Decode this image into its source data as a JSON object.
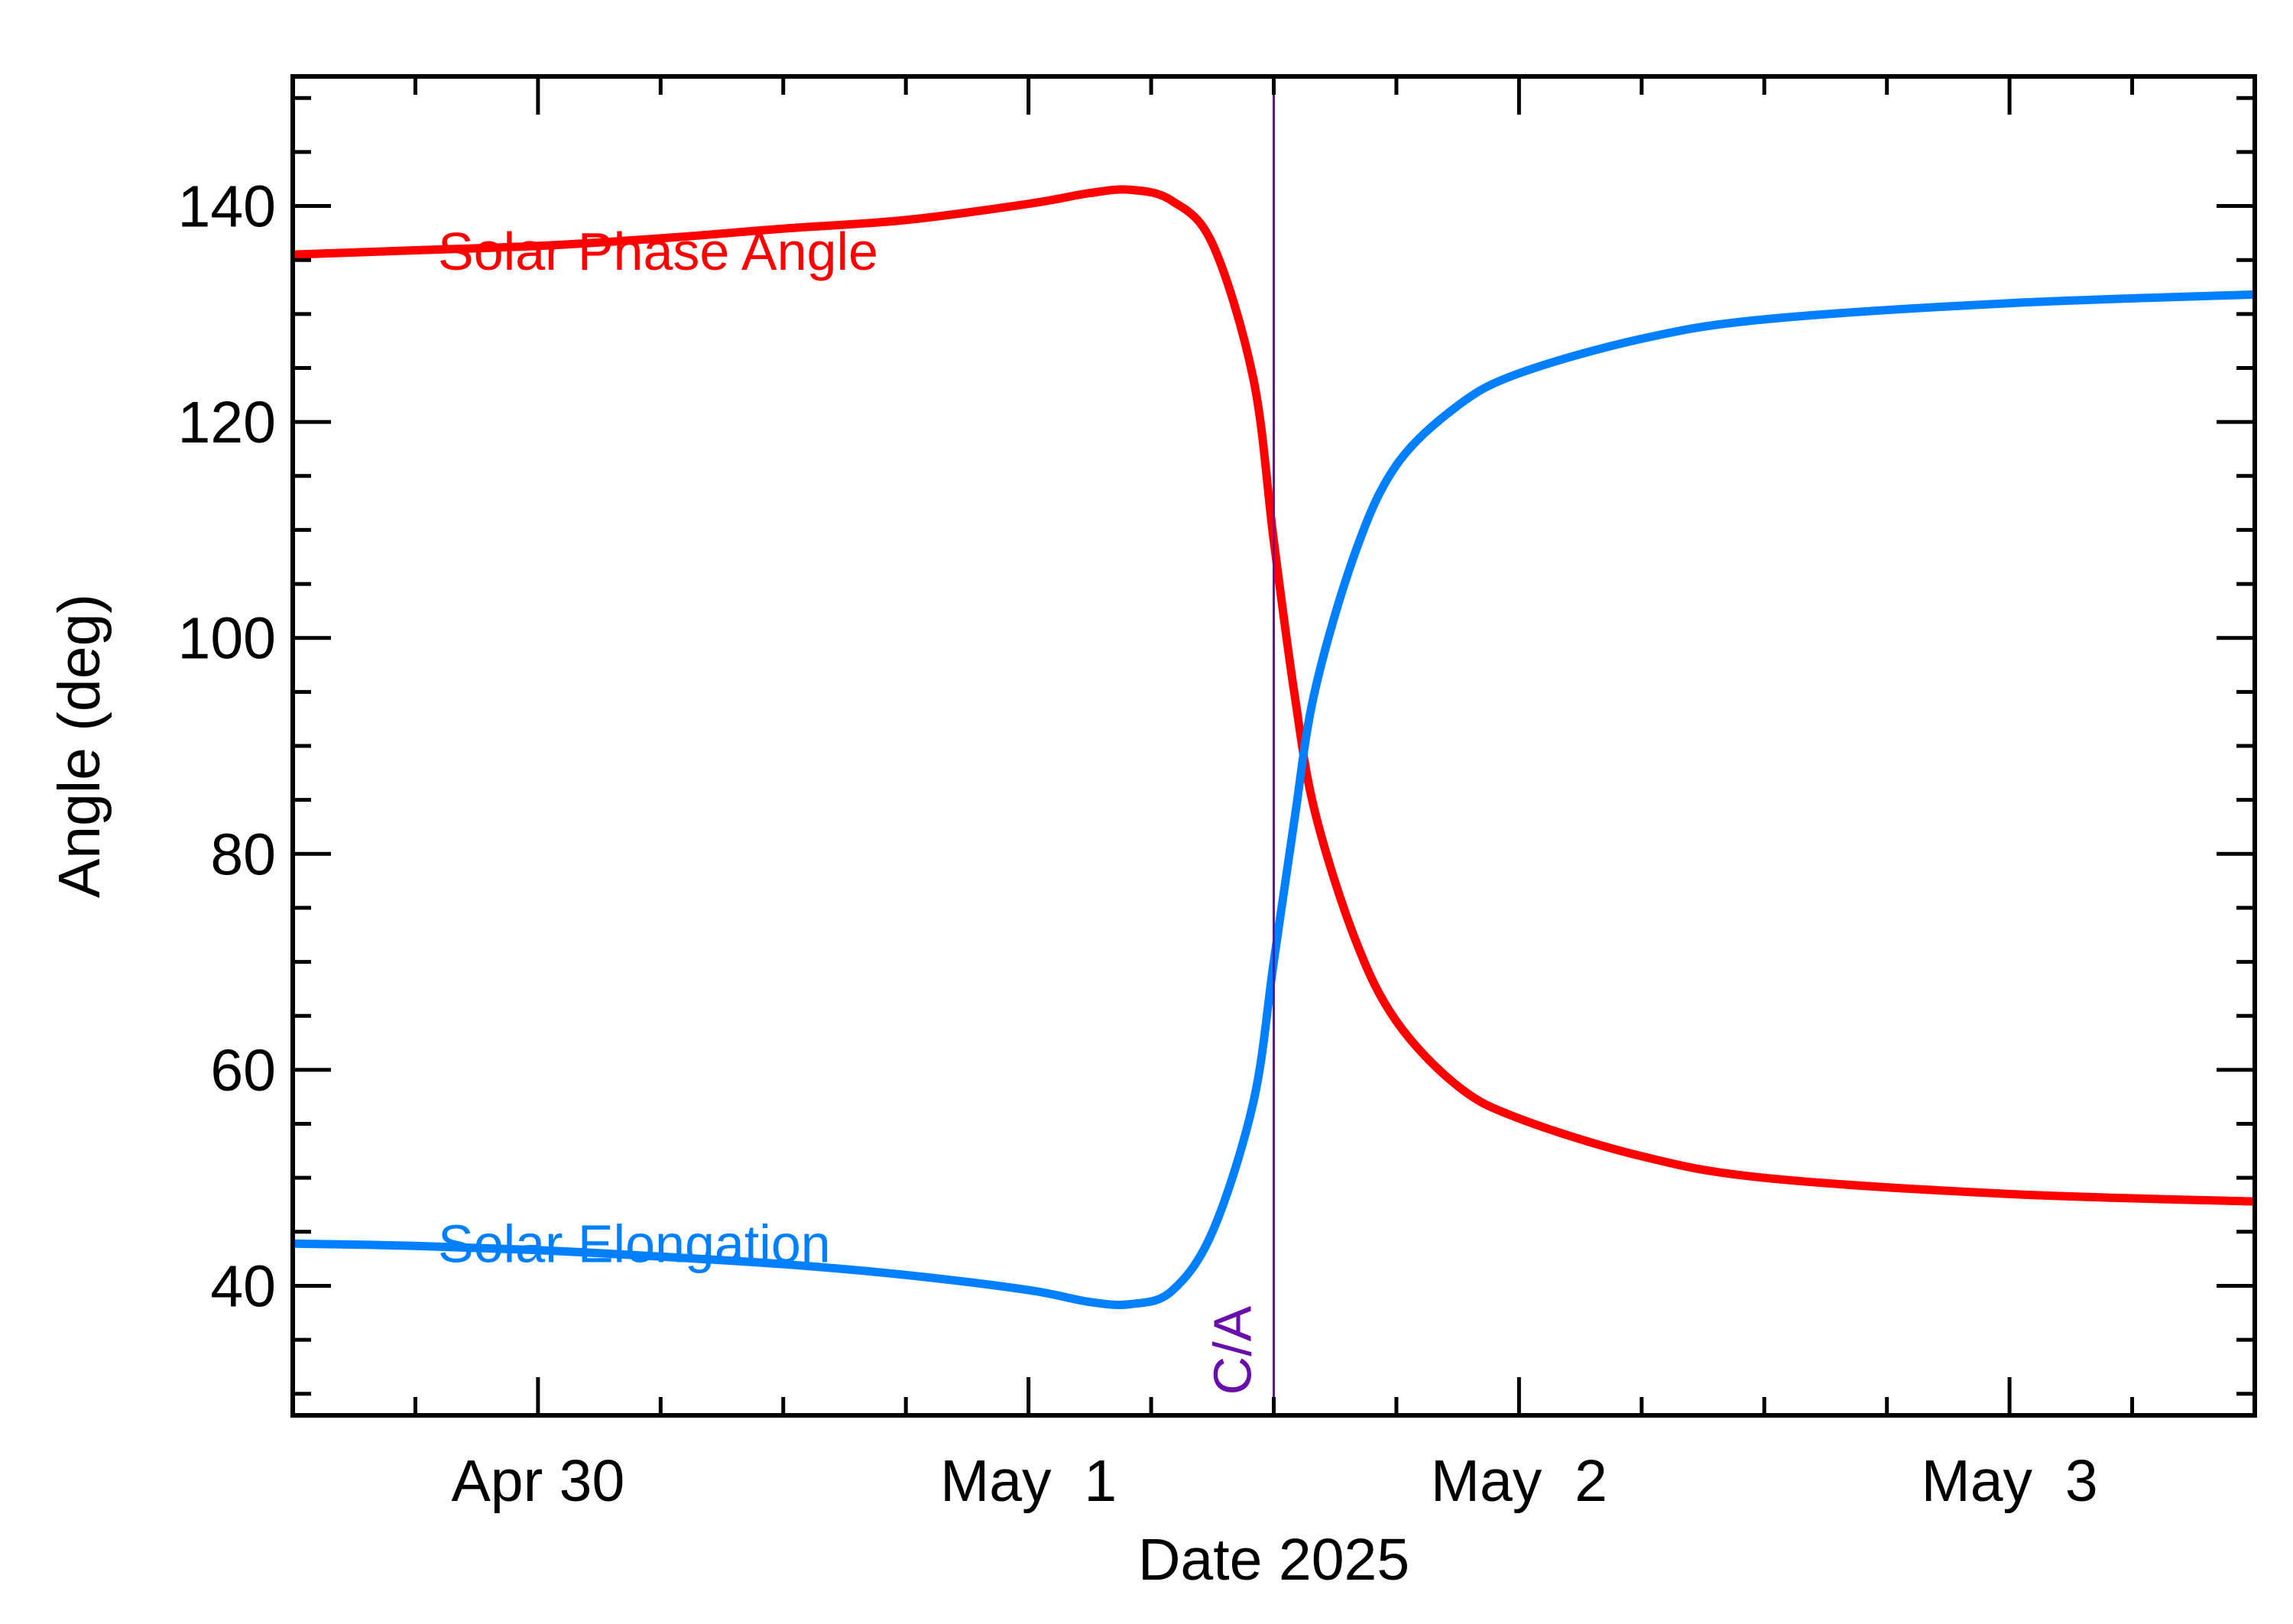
{
  "chart_data": {
    "type": "line",
    "title": "",
    "xlabel": "Date 2025",
    "ylabel": "Angle (deg)",
    "x_unit": "day",
    "xlim": [
      "2025-04-29T12:00",
      "2025-05-03T12:00"
    ],
    "ylim": [
      28,
      152
    ],
    "x_ticks": [
      {
        "value": "2025-04-30T00:00",
        "label": "Apr 30"
      },
      {
        "value": "2025-05-01T00:00",
        "label": "May  1"
      },
      {
        "value": "2025-05-02T00:00",
        "label": "May  2"
      },
      {
        "value": "2025-05-03T00:00",
        "label": "May  3"
      }
    ],
    "y_ticks": [
      40,
      60,
      80,
      100,
      120,
      140
    ],
    "grid": false,
    "closest_approach": {
      "label": "C/A",
      "x": "2025-05-01T12:00",
      "color": "#6a0dad"
    },
    "series": [
      {
        "name": "Solar Phase Angle",
        "color": "#ff0000",
        "x": [
          "2025-04-29T12:00",
          "2025-04-29T18:00",
          "2025-04-30T00:00",
          "2025-04-30T06:00",
          "2025-04-30T12:00",
          "2025-04-30T18:00",
          "2025-05-01T00:00",
          "2025-05-01T03:00",
          "2025-05-01T05:00",
          "2025-05-01T07:00",
          "2025-05-01T09:00",
          "2025-05-01T11:00",
          "2025-05-01T12:00",
          "2025-05-01T13:00",
          "2025-05-01T14:00",
          "2025-05-01T16:00",
          "2025-05-01T18:00",
          "2025-05-01T21:00",
          "2025-05-02T00:00",
          "2025-05-02T06:00",
          "2025-05-02T12:00",
          "2025-05-03T00:00",
          "2025-05-03T12:00"
        ],
        "y": [
          135.5,
          135.9,
          136.3,
          137.0,
          137.9,
          138.7,
          140.2,
          141.2,
          141.5,
          140.5,
          136.5,
          124.0,
          109.0,
          95.0,
          84.0,
          72.0,
          64.5,
          58.5,
          55.5,
          52.0,
          50.0,
          48.5,
          47.8
        ]
      },
      {
        "name": "Solar Elongation",
        "color": "#0080ff",
        "x": [
          "2025-04-29T12:00",
          "2025-04-29T18:00",
          "2025-04-30T00:00",
          "2025-04-30T06:00",
          "2025-04-30T12:00",
          "2025-04-30T18:00",
          "2025-05-01T00:00",
          "2025-05-01T03:00",
          "2025-05-01T05:00",
          "2025-05-01T07:00",
          "2025-05-01T09:00",
          "2025-05-01T11:00",
          "2025-05-01T12:00",
          "2025-05-01T13:00",
          "2025-05-01T14:00",
          "2025-05-01T16:00",
          "2025-05-01T18:00",
          "2025-05-01T21:00",
          "2025-05-02T00:00",
          "2025-05-02T06:00",
          "2025-05-02T12:00",
          "2025-05-03T00:00",
          "2025-05-03T12:00"
        ],
        "y": [
          43.9,
          43.7,
          43.3,
          42.7,
          42.0,
          41.0,
          39.6,
          38.5,
          38.3,
          39.5,
          45.0,
          57.0,
          70.0,
          83.0,
          95.0,
          108.0,
          116.0,
          121.5,
          124.5,
          127.7,
          129.5,
          131.0,
          131.8
        ]
      }
    ]
  }
}
